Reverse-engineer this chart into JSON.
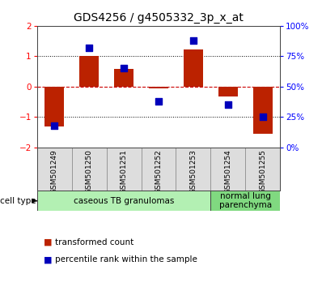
{
  "title": "GDS4256 / g4505332_3p_x_at",
  "samples": [
    "GSM501249",
    "GSM501250",
    "GSM501251",
    "GSM501252",
    "GSM501253",
    "GSM501254",
    "GSM501255"
  ],
  "transformed_count": [
    -1.3,
    1.02,
    0.58,
    -0.05,
    1.22,
    -0.32,
    -1.55
  ],
  "percentile_rank": [
    18,
    82,
    65,
    38,
    88,
    35,
    25
  ],
  "ylim_left": [
    -2,
    2
  ],
  "ylim_right": [
    0,
    100
  ],
  "left_ticks": [
    -2,
    -1,
    0,
    1,
    2
  ],
  "right_ticks": [
    0,
    25,
    50,
    75,
    100
  ],
  "right_tick_labels": [
    "0%",
    "25%",
    "50%",
    "75%",
    "100%"
  ],
  "groups": [
    {
      "label": "caseous TB granulomas",
      "samples": [
        0,
        1,
        2,
        3,
        4
      ],
      "color": "#b3f0b3"
    },
    {
      "label": "normal lung\nparenchyma",
      "samples": [
        5,
        6
      ],
      "color": "#80d980"
    }
  ],
  "bar_color": "#bb2200",
  "dot_color": "#0000bb",
  "bar_width": 0.55,
  "dot_size": 35,
  "legend_bar_label": "transformed count",
  "legend_dot_label": "percentile rank within the sample",
  "cell_type_label": "cell type",
  "background_color": "#ffffff",
  "plot_bg": "#ffffff",
  "zero_line_color": "#cc0000",
  "title_fontsize": 10,
  "tick_label_fontsize": 7.5,
  "sample_fontsize": 6.5,
  "group_fontsize": 7.5,
  "legend_fontsize": 7.5
}
